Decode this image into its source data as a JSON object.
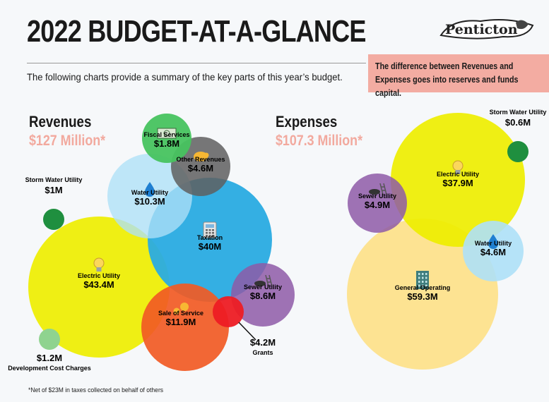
{
  "header": {
    "title": "2022 BUDGET-AT-A-GLANCE",
    "subtitle": "The following charts provide a summary of the key parts of this year’s budget.",
    "note": "The difference between Revenues and Expenses goes into reserves and funds capital.",
    "logo_text": "Penticton"
  },
  "revenues": {
    "heading": "Revenues",
    "total": "$127 Million*"
  },
  "expenses": {
    "heading": "Expenses",
    "total": "$107.3 Million*"
  },
  "footnote": "*Net of $23M in taxes collected on behalf of others",
  "colors": {
    "electric": "#eeee00",
    "taxation": "#29abe2",
    "water": "#aee0f7",
    "fiscal": "#47c35f",
    "other": "#5f5f5f",
    "sewer": "#8e5aa7",
    "sale": "#f15a24",
    "grants": "#ed1c24",
    "storm": "#1f8f3f",
    "dcc": "#8fd38f",
    "general": "#fde28c"
  },
  "chart_data": [
    {
      "type": "bubble",
      "title": "Revenues",
      "unit": "$M",
      "items": [
        {
          "name": "Electric Utility",
          "value": 43.4,
          "label": "$43.4M",
          "icon": "lightbulb-icon"
        },
        {
          "name": "Taxation",
          "value": 40,
          "label": "$40M",
          "icon": "calculator-icon"
        },
        {
          "name": "Sale of Service",
          "value": 11.9,
          "label": "$11.9M",
          "icon": "gears-icon"
        },
        {
          "name": "Water Utility",
          "value": 10.3,
          "label": "$10.3M",
          "icon": "water-drop-icon"
        },
        {
          "name": "Sewer Utility",
          "value": 8.6,
          "label": "$8.6M",
          "icon": "manhole-icon"
        },
        {
          "name": "Other Revenues",
          "value": 4.6,
          "label": "$4.6M",
          "icon": "piggy-bank-icon"
        },
        {
          "name": "Grants",
          "value": 4.2,
          "label": "$4.2M",
          "icon": ""
        },
        {
          "name": "Fiscal Services",
          "value": 1.8,
          "label": "$1.8M",
          "icon": "money-icon"
        },
        {
          "name": "Development Cost Charges",
          "value": 1.2,
          "label": "$1.2M",
          "icon": ""
        },
        {
          "name": "Storm Water Utility",
          "value": 1,
          "label": "$1M",
          "icon": ""
        }
      ]
    },
    {
      "type": "bubble",
      "title": "Expenses",
      "unit": "$M",
      "items": [
        {
          "name": "General Operating",
          "value": 59.3,
          "label": "$59.3M",
          "icon": "building-icon"
        },
        {
          "name": "Electric Utility",
          "value": 37.9,
          "label": "$37.9M",
          "icon": "lightbulb-icon"
        },
        {
          "name": "Sewer Utility",
          "value": 4.9,
          "label": "$4.9M",
          "icon": "manhole-icon"
        },
        {
          "name": "Water Utility",
          "value": 4.6,
          "label": "$4.6M",
          "icon": "water-drop-icon"
        },
        {
          "name": "Storm Water Utility",
          "value": 0.6,
          "label": "$0.6M",
          "icon": ""
        }
      ]
    }
  ]
}
